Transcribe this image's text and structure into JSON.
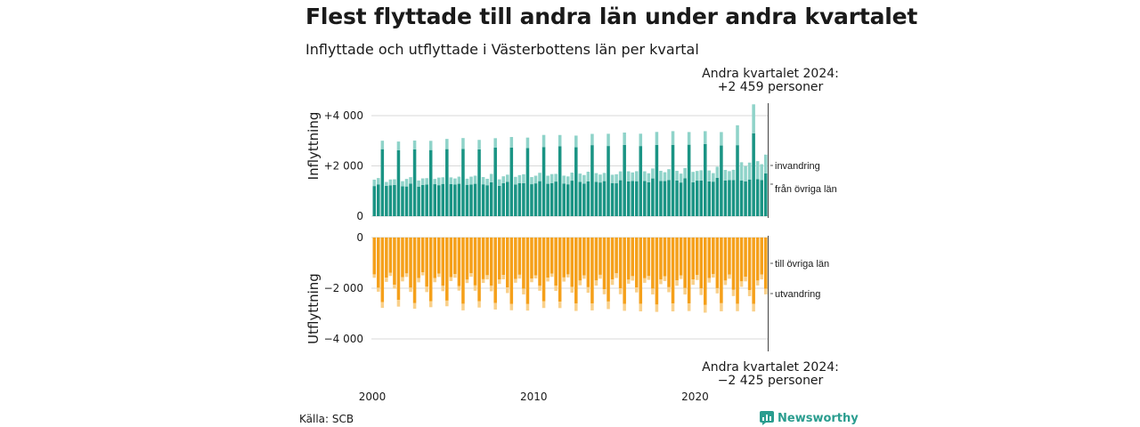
{
  "chart_data": {
    "type": "bar",
    "title": "Flest flyttade till andra län under andra kvartalet",
    "subtitle": "Inflyttade och utflyttade i Västerbottens län per kvartal",
    "top_panel": {
      "ylabel": "Inflyttning",
      "ylim": [
        0,
        4600
      ],
      "yticks": [
        {
          "value": 0,
          "label": "0"
        },
        {
          "value": 2000,
          "label": "+2 000"
        },
        {
          "value": 4000,
          "label": "+4 000"
        }
      ],
      "series": [
        {
          "name": "från övriga län",
          "color": "#1a9484",
          "pattern": [
            1200,
            1270,
            2650,
            1180
          ],
          "trend": 250
        },
        {
          "name": "invandring",
          "color": "#8fd3c9",
          "pattern": [
            250,
            250,
            340,
            180
          ],
          "trend": 150
        }
      ]
    },
    "bottom_panel": {
      "ylabel": "Utflyttning",
      "ylim": [
        -4600,
        0
      ],
      "yticks": [
        {
          "value": 0,
          "label": "0"
        },
        {
          "value": -2000,
          "label": "−2 000"
        },
        {
          "value": -4000,
          "label": "−4 000"
        }
      ],
      "series": [
        {
          "name": "till övriga län",
          "color": "#f5a01a",
          "pattern": [
            -1400,
            -1920,
            -2520,
            -1580
          ],
          "trend": -100
        },
        {
          "name": "utvandring",
          "color": "#f9d08a",
          "pattern": [
            -120,
            -180,
            -240,
            -150
          ],
          "trend": -60
        }
      ]
    },
    "x": {
      "start_year": 2000,
      "quarters": 98,
      "ticks": [
        "2000",
        "2010",
        "2020"
      ]
    },
    "annotations": {
      "top": "Andra kvartalet 2024:\n+2 459 personer",
      "bottom": "Andra kvartalet 2024:\n−2 425 personer"
    },
    "grid": true
  },
  "source": "Källa: SCB",
  "brand": "Newsworthy"
}
